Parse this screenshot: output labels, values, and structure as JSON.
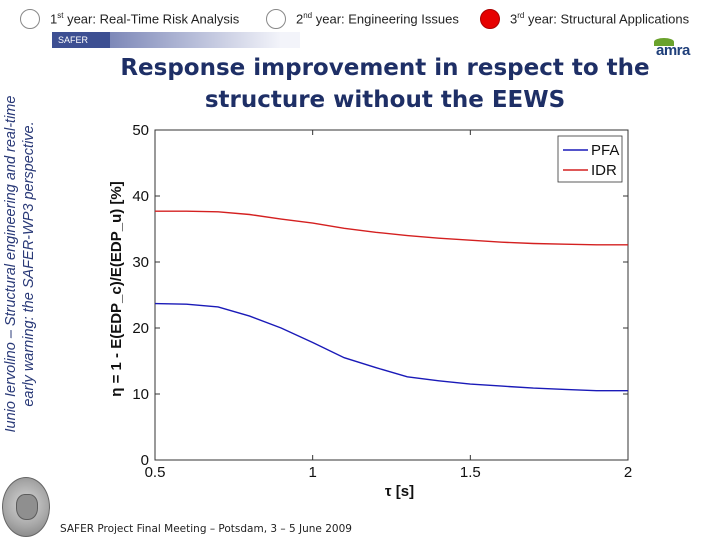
{
  "nav": {
    "tabs": [
      {
        "num": "1",
        "sup": "st",
        "label": " year: Real-Time Risk Analysis",
        "active": false
      },
      {
        "num": "2",
        "sup": "nd",
        "label": " year: Engineering Issues",
        "active": false
      },
      {
        "num": "3",
        "sup": "rd",
        "label": " year: Structural Applications",
        "active": true
      }
    ]
  },
  "sidebar": {
    "author_line1": "Iunio Iervolino – Structural engineering and real-time",
    "author_line2": "early warning: the SAFER-WP3 perspective.",
    "safer_logo": "SAFER"
  },
  "brand": {
    "amra_logo": "amra"
  },
  "slide": {
    "title_line1": "Response improvement in respect to the",
    "title_line2": "structure without the EEWS"
  },
  "footer": {
    "text": "SAFER Project Final Meeting – Potsdam, 3 – 5 June 2009"
  },
  "colors": {
    "pfa": "#1a1ab8",
    "idr": "#d42020",
    "title": "#1e2f66",
    "tab_active": "#e60000"
  },
  "chart_data": {
    "type": "line",
    "title": "",
    "xlabel": "τ [s]",
    "ylabel": "η = 1 - E(EDP_c)/E(EDP_u) [%]",
    "xlim": [
      0.5,
      2
    ],
    "ylim": [
      0,
      50
    ],
    "xticks": [
      0.5,
      1,
      1.5,
      2
    ],
    "xtick_labels": [
      "0.5",
      "1",
      "1.5",
      "2"
    ],
    "yticks": [
      0,
      10,
      20,
      30,
      40,
      50
    ],
    "ytick_labels": [
      "0",
      "10",
      "20",
      "30",
      "40",
      "50"
    ],
    "grid": false,
    "legend_position": "top-right",
    "series": [
      {
        "name": "PFA",
        "color": "#1a1ab8",
        "x": [
          0.5,
          0.6,
          0.7,
          0.8,
          0.9,
          1.0,
          1.1,
          1.2,
          1.3,
          1.4,
          1.5,
          1.6,
          1.7,
          1.8,
          1.9,
          2.0
        ],
        "y": [
          23.7,
          23.6,
          23.2,
          21.8,
          20.0,
          17.8,
          15.5,
          14.0,
          12.6,
          12.0,
          11.5,
          11.2,
          10.9,
          10.7,
          10.5,
          10.5
        ]
      },
      {
        "name": "IDR",
        "color": "#d42020",
        "x": [
          0.5,
          0.6,
          0.7,
          0.8,
          0.9,
          1.0,
          1.1,
          1.2,
          1.3,
          1.4,
          1.5,
          1.6,
          1.7,
          1.8,
          1.9,
          2.0
        ],
        "y": [
          37.7,
          37.7,
          37.6,
          37.2,
          36.5,
          35.9,
          35.1,
          34.5,
          34.0,
          33.6,
          33.3,
          33.0,
          32.8,
          32.7,
          32.6,
          32.6
        ]
      }
    ]
  }
}
